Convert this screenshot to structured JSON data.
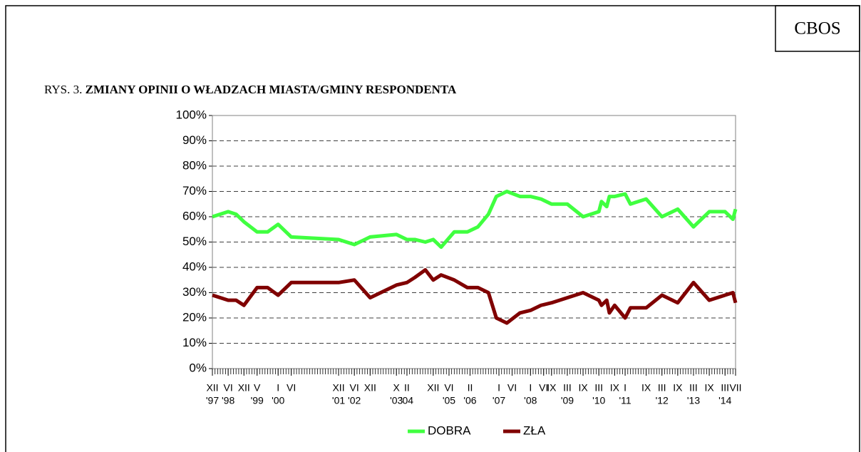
{
  "badge": "CBOS",
  "chart_data": {
    "type": "line",
    "label": "RYS. 3.",
    "title": "ZMIANY OPINII O WŁADZACH MIASTA/GMINY RESPONDENTA",
    "x": [
      "1997-12",
      "1998-06",
      "1998-09",
      "1998-12",
      "1999-05",
      "1999-09",
      "2000-01",
      "2000-06",
      "2001-12",
      "2002-06",
      "2002-12",
      "2003-10",
      "2004-02",
      "2004-05",
      "2004-09",
      "2004-12",
      "2005-03",
      "2005-08",
      "2006-01",
      "2006-05",
      "2006-09",
      "2006-12",
      "2007-04",
      "2007-09",
      "2008-01",
      "2008-05",
      "2008-09",
      "2009-03",
      "2009-09",
      "2010-03",
      "2010-04",
      "2010-06",
      "2010-07",
      "2010-09",
      "2011-01",
      "2011-03",
      "2011-09",
      "2012-03",
      "2012-09",
      "2013-03",
      "2013-09",
      "2014-03",
      "2014-06",
      "2014-07"
    ],
    "series": [
      {
        "name": "DOBRA",
        "color": "#40ff40",
        "values": [
          60,
          62,
          61,
          58,
          54,
          54,
          57,
          52,
          51,
          49,
          52,
          53,
          51,
          51,
          50,
          51,
          48,
          54,
          54,
          56,
          61,
          68,
          70,
          68,
          68,
          67,
          65,
          65,
          60,
          62,
          66,
          64,
          68,
          68,
          69,
          65,
          67,
          60,
          63,
          56,
          62,
          62,
          59,
          63
        ]
      },
      {
        "name": "ZŁA",
        "color": "#800000",
        "values": [
          29,
          27,
          27,
          25,
          32,
          32,
          29,
          34,
          34,
          35,
          28,
          33,
          34,
          36,
          39,
          35,
          37,
          35,
          32,
          32,
          30,
          20,
          18,
          22,
          23,
          25,
          26,
          28,
          30,
          27,
          25,
          27,
          22,
          25,
          20,
          24,
          24,
          29,
          26,
          34,
          27,
          29,
          30,
          26
        ]
      }
    ],
    "xlim": [
      "1997-12",
      "2014-07"
    ],
    "xticks": [
      {
        "value": "1997-12",
        "label": "XII"
      },
      {
        "value": "1998-06",
        "label": "VI"
      },
      {
        "value": "1998-12",
        "label": "XII"
      },
      {
        "value": "1999-05",
        "label": "V"
      },
      {
        "value": "2000-01",
        "label": "I"
      },
      {
        "value": "2000-06",
        "label": "VI"
      },
      {
        "value": "2001-12",
        "label": "XII"
      },
      {
        "value": "2002-06",
        "label": "VI"
      },
      {
        "value": "2002-12",
        "label": "XII"
      },
      {
        "value": "2003-10",
        "label": "X"
      },
      {
        "value": "2004-02",
        "label": "II"
      },
      {
        "value": "2004-12",
        "label": "XII"
      },
      {
        "value": "2005-06",
        "label": "VI"
      },
      {
        "value": "2006-02",
        "label": "II"
      },
      {
        "value": "2007-01",
        "label": "I"
      },
      {
        "value": "2007-06",
        "label": "VI"
      },
      {
        "value": "2008-01",
        "label": "I"
      },
      {
        "value": "2008-06",
        "label": "VI"
      },
      {
        "value": "2008-09",
        "label": "IX"
      },
      {
        "value": "2009-03",
        "label": "III"
      },
      {
        "value": "2009-09",
        "label": "IX"
      },
      {
        "value": "2010-03",
        "label": "III"
      },
      {
        "value": "2010-09",
        "label": "IX"
      },
      {
        "value": "2011-01",
        "label": "I"
      },
      {
        "value": "2011-09",
        "label": "IX"
      },
      {
        "value": "2012-03",
        "label": "III"
      },
      {
        "value": "2012-09",
        "label": "IX"
      },
      {
        "value": "2013-03",
        "label": "III"
      },
      {
        "value": "2013-09",
        "label": "IX"
      },
      {
        "value": "2014-03",
        "label": "III"
      },
      {
        "value": "2014-07",
        "label": "VII"
      }
    ],
    "year_labels": [
      {
        "value": "1997-12",
        "label": "'97"
      },
      {
        "value": "1998-06",
        "label": "'98"
      },
      {
        "value": "1999-05",
        "label": "'99"
      },
      {
        "value": "2000-01",
        "label": "'00"
      },
      {
        "value": "2001-12",
        "label": "'01"
      },
      {
        "value": "2002-06",
        "label": "'02"
      },
      {
        "value": "2003-10",
        "label": "'03"
      },
      {
        "value": "2004-02",
        "label": "'04"
      },
      {
        "value": "2005-06",
        "label": "'05"
      },
      {
        "value": "2006-02",
        "label": "'06"
      },
      {
        "value": "2007-01",
        "label": "'07"
      },
      {
        "value": "2008-01",
        "label": "'08"
      },
      {
        "value": "2009-03",
        "label": "'09"
      },
      {
        "value": "2010-03",
        "label": "'10"
      },
      {
        "value": "2011-01",
        "label": "'11"
      },
      {
        "value": "2012-03",
        "label": "'12"
      },
      {
        "value": "2013-03",
        "label": "'13"
      },
      {
        "value": "2014-03",
        "label": "'14"
      }
    ],
    "ylim": [
      0,
      100
    ],
    "yticks": [
      {
        "value": 0,
        "label": "0%"
      },
      {
        "value": 10,
        "label": "10%"
      },
      {
        "value": 20,
        "label": "20%"
      },
      {
        "value": 30,
        "label": "30%"
      },
      {
        "value": 40,
        "label": "40%"
      },
      {
        "value": 50,
        "label": "50%"
      },
      {
        "value": 60,
        "label": "60%"
      },
      {
        "value": 70,
        "label": "70%"
      },
      {
        "value": 80,
        "label": "80%"
      },
      {
        "value": 90,
        "label": "90%"
      },
      {
        "value": 100,
        "label": "100%"
      }
    ],
    "grid": true,
    "legend": "bottom"
  }
}
